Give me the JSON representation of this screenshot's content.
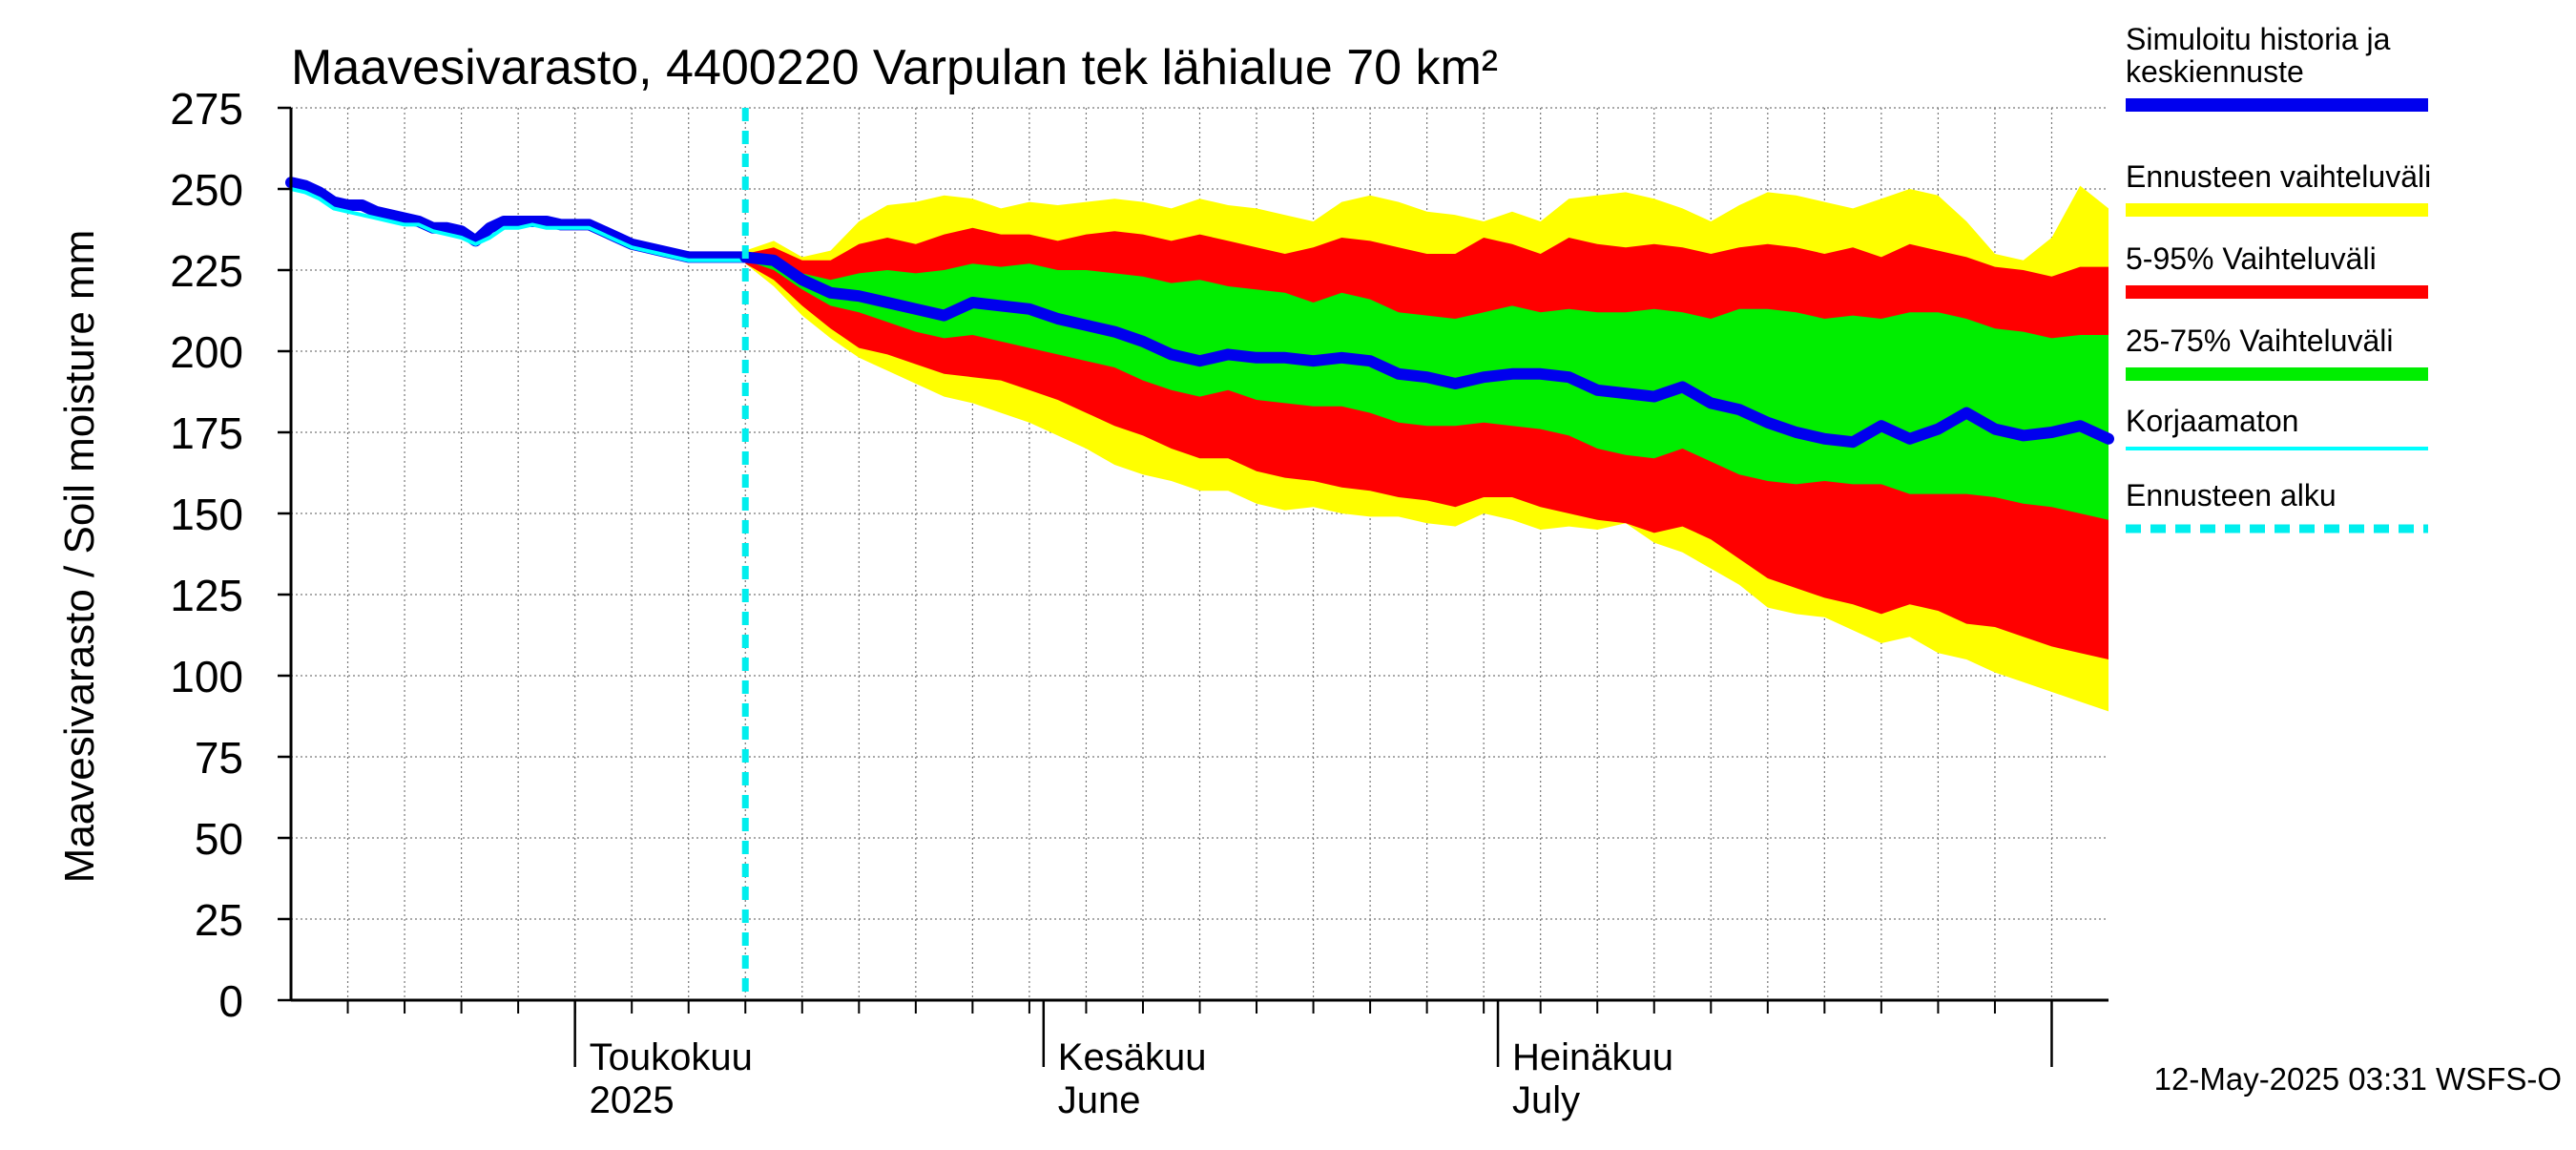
{
  "chart_data": {
    "type": "area",
    "title": "Maavesivarasto, 4400220 Varpulan tek lähialue 70 km²",
    "ylabel": "Maavesivarasto / Soil moisture   mm",
    "ylim": [
      0,
      275
    ],
    "yticks": [
      "0",
      "25",
      "50",
      "75",
      "100",
      "125",
      "150",
      "175",
      "200",
      "225",
      "250",
      "275"
    ],
    "x_domain_days": [
      0,
      128
    ],
    "x_axis_note": "day 0 = 2025-03-23, day 128 = 2025-07-29",
    "month_labels": [
      {
        "day": 20,
        "line1": "Toukokuu",
        "line2": "2025"
      },
      {
        "day": 53,
        "line1": "Kesäkuu",
        "line2": "June"
      },
      {
        "day": 85,
        "line1": "Heinäkuu",
        "line2": "July"
      }
    ],
    "month_boundaries": [
      20,
      53,
      85,
      124
    ],
    "forecast_start_day": 32,
    "legend": [
      {
        "id": "sim",
        "label_lines": [
          "Simuloitu historia ja",
          "keskiennuste"
        ],
        "color": "#0000ee",
        "style": "thick"
      },
      {
        "id": "range",
        "label_lines": [
          "Ennusteen vaihteluväli"
        ],
        "color": "#ffff00",
        "style": "thick"
      },
      {
        "id": "p5_95",
        "label_lines": [
          "5-95% Vaihteluväli"
        ],
        "color": "#ff0000",
        "style": "thick"
      },
      {
        "id": "p25_75",
        "label_lines": [
          "25-75% Vaihteluväli"
        ],
        "color": "#00ee00",
        "style": "thick"
      },
      {
        "id": "uncorr",
        "label_lines": [
          "Korjaamaton"
        ],
        "color": "#00ffff",
        "style": "thin"
      },
      {
        "id": "fstart",
        "label_lines": [
          "Ennusteen alku"
        ],
        "color": "#00eeee",
        "style": "dashed"
      }
    ],
    "footer": "12-May-2025 03:31 WSFS-O",
    "series": {
      "days": [
        32,
        34,
        36,
        38,
        40,
        42,
        44,
        46,
        48,
        50,
        52,
        54,
        56,
        58,
        60,
        62,
        64,
        66,
        68,
        70,
        72,
        74,
        76,
        78,
        80,
        82,
        84,
        86,
        88,
        90,
        92,
        94,
        96,
        98,
        100,
        102,
        104,
        106,
        108,
        110,
        112,
        114,
        116,
        118,
        120,
        122,
        124,
        126,
        128
      ],
      "range_upper": [
        231,
        234,
        229,
        231,
        240,
        245,
        246,
        248,
        247,
        244,
        246,
        245,
        246,
        247,
        246,
        244,
        247,
        245,
        244,
        242,
        240,
        246,
        248,
        246,
        243,
        242,
        240,
        243,
        240,
        247,
        248,
        249,
        247,
        244,
        240,
        245,
        249,
        248,
        246,
        244,
        247,
        250,
        248,
        240,
        230,
        228,
        235,
        251,
        244
      ],
      "p5_95_upper": [
        230,
        232,
        228,
        228,
        233,
        235,
        233,
        236,
        238,
        236,
        236,
        234,
        236,
        237,
        236,
        234,
        236,
        234,
        232,
        230,
        232,
        235,
        234,
        232,
        230,
        230,
        235,
        233,
        230,
        235,
        233,
        232,
        233,
        232,
        230,
        232,
        233,
        232,
        230,
        232,
        229,
        233,
        231,
        229,
        226,
        225,
        223,
        226,
        226
      ],
      "p25_75_upper": [
        229,
        229,
        224,
        222,
        224,
        225,
        224,
        225,
        227,
        226,
        227,
        225,
        225,
        224,
        223,
        221,
        222,
        220,
        219,
        218,
        215,
        218,
        216,
        212,
        211,
        210,
        212,
        214,
        212,
        213,
        212,
        212,
        213,
        212,
        210,
        213,
        213,
        212,
        210,
        211,
        210,
        212,
        212,
        210,
        207,
        206,
        204,
        205,
        205
      ],
      "mean": [
        229,
        228,
        222,
        218,
        217,
        215,
        213,
        211,
        215,
        214,
        213,
        210,
        208,
        206,
        203,
        199,
        197,
        199,
        198,
        198,
        197,
        198,
        197,
        193,
        192,
        190,
        192,
        193,
        193,
        192,
        188,
        187,
        186,
        189,
        184,
        182,
        178,
        175,
        173,
        172,
        177,
        173,
        176,
        181,
        176,
        174,
        175,
        177,
        173
      ],
      "p25_75_lower": [
        228,
        225,
        219,
        214,
        212,
        209,
        206,
        204,
        205,
        203,
        201,
        199,
        197,
        195,
        191,
        188,
        186,
        188,
        185,
        184,
        183,
        183,
        181,
        178,
        177,
        177,
        178,
        177,
        176,
        174,
        170,
        168,
        167,
        170,
        166,
        162,
        160,
        159,
        160,
        159,
        159,
        156,
        156,
        156,
        155,
        153,
        152,
        150,
        148
      ],
      "p5_95_lower": [
        227,
        222,
        214,
        207,
        201,
        199,
        196,
        193,
        192,
        191,
        188,
        185,
        181,
        177,
        174,
        170,
        167,
        167,
        163,
        161,
        160,
        158,
        157,
        155,
        154,
        152,
        155,
        155,
        152,
        150,
        148,
        147,
        144,
        146,
        142,
        136,
        130,
        127,
        124,
        122,
        119,
        122,
        120,
        116,
        115,
        112,
        109,
        107,
        105
      ],
      "range_lower": [
        227,
        220,
        211,
        204,
        198,
        194,
        190,
        186,
        184,
        181,
        178,
        174,
        170,
        165,
        162,
        160,
        157,
        157,
        153,
        151,
        152,
        150,
        149,
        149,
        147,
        146,
        150,
        148,
        145,
        146,
        145,
        147,
        141,
        138,
        133,
        128,
        121,
        119,
        118,
        114,
        110,
        112,
        107,
        105,
        101,
        98,
        95,
        92,
        89
      ],
      "history_days": [
        0,
        1,
        2,
        3,
        4,
        5,
        6,
        7,
        8,
        9,
        10,
        11,
        12,
        13,
        14,
        15,
        16,
        17,
        18,
        19,
        20,
        21,
        22,
        23,
        24,
        25,
        26,
        27,
        28,
        29,
        30,
        31,
        32
      ],
      "history_mean": [
        252,
        251,
        249,
        246,
        245,
        245,
        243,
        242,
        241,
        240,
        238,
        238,
        237,
        234,
        238,
        240,
        240,
        240,
        240,
        239,
        239,
        239,
        237,
        235,
        233,
        232,
        231,
        230,
        229,
        229,
        229,
        229,
        229
      ],
      "history_uncorr": [
        250,
        249,
        247,
        244,
        243,
        242,
        241,
        240,
        239,
        239,
        237,
        236,
        235,
        233,
        235,
        238,
        238,
        239,
        238,
        238,
        238,
        238,
        236,
        234,
        232,
        231,
        230,
        229,
        228,
        228,
        228,
        228,
        228
      ]
    }
  }
}
